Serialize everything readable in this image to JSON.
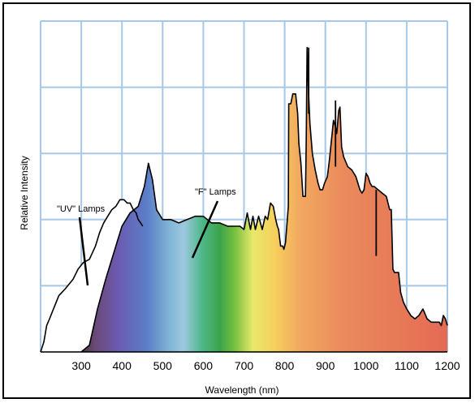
{
  "chart_data": {
    "type": "area",
    "title": "",
    "xlabel": "Wavelength (nm)",
    "ylabel": "Relative Intensity",
    "xlim": [
      200,
      1200
    ],
    "ylim": [
      0,
      100
    ],
    "x_ticks": [
      "300",
      "400",
      "500",
      "600",
      "700",
      "800",
      "900",
      "1000",
      "1100",
      "1200"
    ],
    "grid": true,
    "grid_color": "#a6c8e8",
    "annotations": [
      {
        "text": "\"UV\" Lamps",
        "target_series": "UV Lamps"
      },
      {
        "text": "\"F\" Lamps",
        "target_series": "F Lamps"
      }
    ],
    "series": [
      {
        "name": "\"F\" Lamps",
        "fill": "visible spectrum gradient",
        "points": [
          [
            300,
            0
          ],
          [
            320,
            2
          ],
          [
            340,
            13
          ],
          [
            360,
            22
          ],
          [
            380,
            30
          ],
          [
            400,
            38
          ],
          [
            420,
            42
          ],
          [
            440,
            44
          ],
          [
            455,
            50
          ],
          [
            465,
            57
          ],
          [
            475,
            52
          ],
          [
            485,
            43
          ],
          [
            500,
            40
          ],
          [
            520,
            40
          ],
          [
            540,
            39
          ],
          [
            560,
            40
          ],
          [
            580,
            41
          ],
          [
            600,
            41
          ],
          [
            620,
            39
          ],
          [
            640,
            39
          ],
          [
            660,
            38
          ],
          [
            680,
            38
          ],
          [
            690,
            38
          ],
          [
            700,
            37
          ],
          [
            708,
            42
          ],
          [
            716,
            37
          ],
          [
            722,
            41
          ],
          [
            728,
            37
          ],
          [
            736,
            41
          ],
          [
            745,
            37
          ],
          [
            752,
            41
          ],
          [
            758,
            40
          ],
          [
            765,
            45
          ],
          [
            772,
            44
          ],
          [
            778,
            40
          ],
          [
            782,
            38
          ],
          [
            785,
            37
          ],
          [
            790,
            32
          ],
          [
            795,
            32
          ],
          [
            798,
            31
          ],
          [
            802,
            33
          ],
          [
            809,
            44
          ],
          [
            810,
            75
          ],
          [
            815,
            75
          ],
          [
            820,
            78
          ],
          [
            827,
            78
          ],
          [
            832,
            72
          ],
          [
            835,
            63
          ],
          [
            840,
            57
          ],
          [
            845,
            47
          ],
          [
            851,
            47
          ],
          [
            853,
            65
          ],
          [
            855,
            92
          ],
          [
            858,
            80
          ],
          [
            862,
            69
          ],
          [
            868,
            60
          ],
          [
            875,
            55
          ],
          [
            882,
            51
          ],
          [
            887,
            49
          ],
          [
            893,
            49
          ],
          [
            898,
            51
          ],
          [
            905,
            53
          ],
          [
            910,
            58
          ],
          [
            915,
            64
          ],
          [
            920,
            70
          ],
          [
            925,
            68
          ],
          [
            928,
            66
          ],
          [
            933,
            73
          ],
          [
            936,
            74
          ],
          [
            940,
            62
          ],
          [
            945,
            59
          ],
          [
            955,
            56
          ],
          [
            965,
            55
          ],
          [
            975,
            53
          ],
          [
            985,
            49
          ],
          [
            990,
            48
          ],
          [
            995,
            49
          ],
          [
            1000,
            54
          ],
          [
            1005,
            53
          ],
          [
            1010,
            51
          ],
          [
            1015,
            50
          ],
          [
            1020,
            50
          ],
          [
            1030,
            49
          ],
          [
            1040,
            48
          ],
          [
            1050,
            47
          ],
          [
            1058,
            43
          ],
          [
            1062,
            43
          ],
          [
            1066,
            25
          ],
          [
            1070,
            24
          ],
          [
            1080,
            24
          ],
          [
            1085,
            18
          ],
          [
            1092,
            15
          ],
          [
            1100,
            13
          ],
          [
            1110,
            11
          ],
          [
            1120,
            10
          ],
          [
            1130,
            11
          ],
          [
            1140,
            13
          ],
          [
            1150,
            10
          ],
          [
            1160,
            9
          ],
          [
            1170,
            9
          ],
          [
            1180,
            9
          ],
          [
            1185,
            8
          ],
          [
            1190,
            11
          ],
          [
            1195,
            10
          ],
          [
            1200,
            8
          ]
        ],
        "spikes": [
          {
            "x": 859,
            "y": 92
          },
          {
            "x": 925,
            "y": 76
          },
          {
            "x": 1025,
            "y": 49
          }
        ]
      },
      {
        "name": "\"UV\" Lamps",
        "fill": "white",
        "points": [
          [
            200,
            0
          ],
          [
            208,
            3
          ],
          [
            215,
            8
          ],
          [
            222,
            10
          ],
          [
            235,
            14
          ],
          [
            245,
            17
          ],
          [
            260,
            19
          ],
          [
            280,
            22
          ],
          [
            292,
            25
          ],
          [
            305,
            27
          ],
          [
            320,
            28
          ],
          [
            335,
            32
          ],
          [
            345,
            36
          ],
          [
            355,
            39
          ],
          [
            365,
            41
          ],
          [
            375,
            43
          ],
          [
            385,
            44
          ],
          [
            395,
            46
          ],
          [
            405,
            46
          ],
          [
            413,
            45
          ],
          [
            420,
            45
          ],
          [
            428,
            43
          ],
          [
            435,
            42
          ],
          [
            440,
            40
          ],
          [
            446,
            39
          ],
          [
            451,
            38
          ]
        ]
      }
    ]
  }
}
